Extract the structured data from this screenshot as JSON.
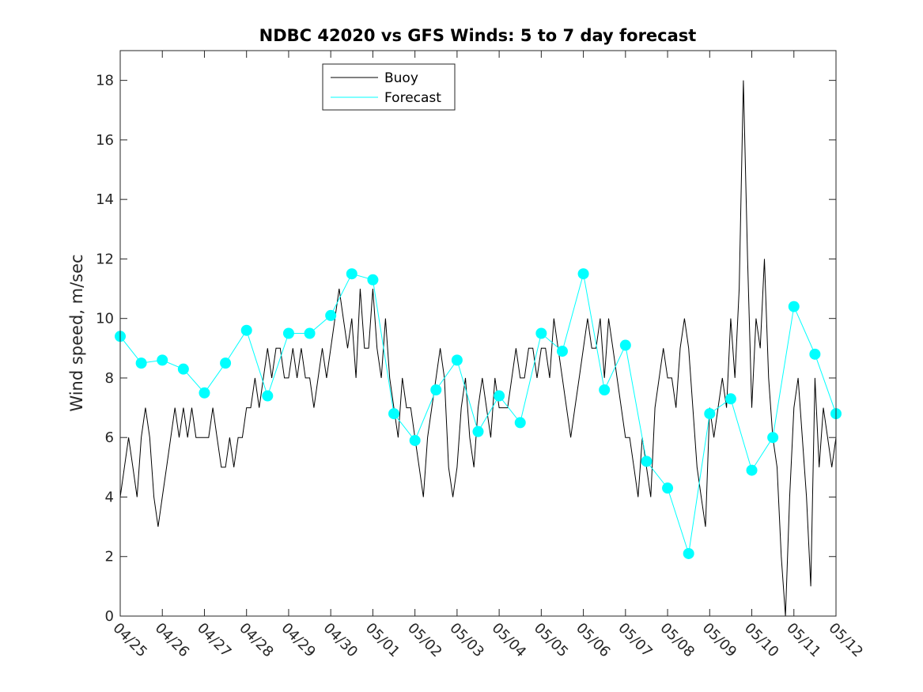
{
  "chart_data": {
    "type": "line",
    "title": "NDBC 42020 vs GFS Winds: 5 to 7 day forecast",
    "xlabel": "",
    "ylabel": "Wind speed, m/sec",
    "ylim": [
      0,
      19
    ],
    "yticks": [
      0,
      2,
      4,
      6,
      8,
      10,
      12,
      14,
      16,
      18
    ],
    "x_axis": {
      "start": "04/25",
      "end": "05/12"
    },
    "xticks": [
      "04/25",
      "04/26",
      "04/27",
      "04/28",
      "04/29",
      "04/30",
      "05/01",
      "05/02",
      "05/03",
      "05/04",
      "05/05",
      "05/06",
      "05/07",
      "05/08",
      "05/09",
      "05/10",
      "05/11",
      "05/12"
    ],
    "grid": false,
    "legend_position": "top-left",
    "colors": {
      "buoy": "#000000",
      "forecast": "#00ffff"
    },
    "series": [
      {
        "name": "Buoy",
        "x_days": [
          0,
          0.1,
          0.2,
          0.3,
          0.4,
          0.5,
          0.6,
          0.7,
          0.8,
          0.9,
          1.0,
          1.1,
          1.2,
          1.3,
          1.4,
          1.5,
          1.6,
          1.7,
          1.8,
          1.9,
          2.0,
          2.1,
          2.2,
          2.3,
          2.4,
          2.5,
          2.6,
          2.7,
          2.8,
          2.9,
          3.0,
          3.1,
          3.2,
          3.3,
          3.4,
          3.5,
          3.6,
          3.7,
          3.8,
          3.9,
          4.0,
          4.1,
          4.2,
          4.3,
          4.4,
          4.5,
          4.6,
          4.7,
          4.8,
          4.9,
          5.0,
          5.1,
          5.2,
          5.3,
          5.4,
          5.5,
          5.6,
          5.7,
          5.8,
          5.9,
          6.0,
          6.1,
          6.2,
          6.3,
          6.4,
          6.5,
          6.6,
          6.7,
          6.8,
          6.9,
          7.0,
          7.1,
          7.2,
          7.3,
          7.4,
          7.5,
          7.6,
          7.7,
          7.8,
          7.9,
          8.0,
          8.1,
          8.2,
          8.3,
          8.4,
          8.5,
          8.6,
          8.7,
          8.8,
          8.9,
          9.0,
          9.1,
          9.2,
          9.3,
          9.4,
          9.5,
          9.6,
          9.7,
          9.8,
          9.9,
          10.0,
          10.1,
          10.2,
          10.3,
          10.4,
          10.5,
          10.6,
          10.7,
          10.8,
          10.9,
          11.0,
          11.1,
          11.2,
          11.3,
          11.4,
          11.5,
          11.6,
          11.7,
          11.8,
          11.9,
          12.0,
          12.1,
          12.2,
          12.3,
          12.4,
          12.5,
          12.6,
          12.7,
          12.8,
          12.9,
          13.0,
          13.1,
          13.2,
          13.3,
          13.4,
          13.5,
          13.6,
          13.7,
          13.8,
          13.9,
          14.0,
          14.1,
          14.2,
          14.3,
          14.4,
          14.5,
          14.6,
          14.7,
          14.8,
          14.9,
          15.0,
          15.1,
          15.2,
          15.3,
          15.4,
          15.5,
          15.6,
          15.7,
          15.8,
          15.9,
          16.0,
          16.1,
          16.2,
          16.3,
          16.4,
          16.5,
          16.6,
          16.7,
          16.8,
          16.9,
          17.0
        ],
        "values": [
          4,
          5,
          6,
          5,
          4,
          6,
          7,
          6,
          4,
          3,
          4,
          5,
          6,
          7,
          6,
          7,
          6,
          7,
          6,
          6,
          6,
          6,
          7,
          6,
          5,
          5,
          6,
          5,
          6,
          6,
          7,
          7,
          8,
          7,
          8,
          9,
          8,
          9,
          9,
          8,
          8,
          9,
          8,
          9,
          8,
          8,
          7,
          8,
          9,
          8,
          9,
          10,
          11,
          10,
          9,
          10,
          8,
          11,
          9,
          9,
          11,
          9,
          8,
          10,
          8,
          7,
          6,
          8,
          7,
          7,
          6,
          5,
          4,
          6,
          7,
          8,
          9,
          8,
          5,
          4,
          5,
          7,
          8,
          6,
          5,
          7,
          8,
          7,
          6,
          8,
          7,
          7,
          7,
          8,
          9,
          8,
          8,
          9,
          9,
          8,
          9,
          9,
          8,
          10,
          9,
          8,
          7,
          6,
          7,
          8,
          9,
          10,
          9,
          9,
          10,
          8,
          10,
          9,
          8,
          7,
          6,
          6,
          5,
          4,
          6,
          5,
          4,
          7,
          8,
          9,
          8,
          8,
          7,
          9,
          10,
          9,
          7,
          5,
          4,
          3,
          7,
          6,
          7,
          8,
          7,
          10,
          8,
          11,
          18,
          12,
          7,
          10,
          9,
          12,
          8,
          6,
          5,
          2,
          0,
          4,
          7,
          8,
          6,
          4,
          1,
          8,
          5,
          7,
          6,
          5,
          6
        ]
      },
      {
        "name": "Forecast",
        "x_days": [
          0,
          0.5,
          1.0,
          1.5,
          2.0,
          2.5,
          3.0,
          3.5,
          4.0,
          4.5,
          5.0,
          5.5,
          6.0,
          6.5,
          7.0,
          7.5,
          8.0,
          8.5,
          9.0,
          9.5,
          10.0,
          10.5,
          11.0,
          11.5,
          12.0,
          12.5,
          13.0,
          13.5,
          14.0,
          14.5,
          15.0,
          15.5,
          16.0,
          16.5,
          17.0
        ],
        "values": [
          9.4,
          8.5,
          8.6,
          8.3,
          7.5,
          8.5,
          9.6,
          7.4,
          9.5,
          9.5,
          10.1,
          11.5,
          11.3,
          6.8,
          5.9,
          7.6,
          8.6,
          6.2,
          7.4,
          6.5,
          9.5,
          8.9,
          11.5,
          7.6,
          9.1,
          5.2,
          4.3,
          2.1,
          6.8,
          7.3,
          4.9,
          6.0,
          10.4,
          8.8,
          6.8
        ]
      }
    ]
  }
}
